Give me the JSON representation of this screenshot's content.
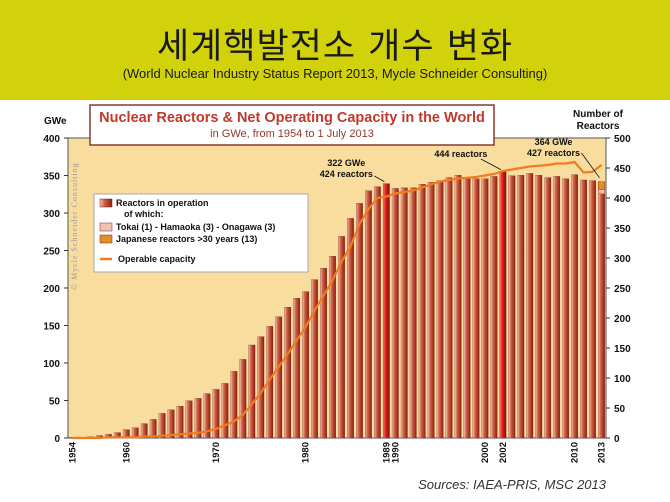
{
  "header": {
    "title": "세계핵발전소 개수 변화",
    "subtitle": "(World Nuclear Industry Status Report 2013, Mycle Schneider Consulting)"
  },
  "watermark": "© Mycle Schneider Consulting",
  "sources": "Sources: IAEA-PRIS, MSC 2013",
  "colors": {
    "header_bg": "#d2d20b",
    "plot_bg": "#f9dd9f",
    "bar_main": "#bf3a22",
    "bar_highlight": "#d8221f",
    "bar_pink": "#f2c3b2",
    "bar_orange": "#e88a2e",
    "line": "#f27a1f",
    "title_color": "#c0392b"
  },
  "chart_data": {
    "type": "bar",
    "title": "Nuclear Reactors & Net Operating Capacity in the World",
    "subtitle": "in GWe, from 1954 to 1 July 2013",
    "ylabel_left": "GWe",
    "ylabel_right": "Number of Reactors",
    "ylim_left": [
      0,
      400
    ],
    "ylim_right": [
      0,
      500
    ],
    "yticks_left": [
      0,
      50,
      100,
      150,
      200,
      250,
      300,
      350,
      400
    ],
    "yticks_right": [
      0,
      50,
      100,
      150,
      200,
      250,
      300,
      350,
      400,
      450,
      500
    ],
    "x_tick_labels": [
      "1954",
      "1960",
      "1970",
      "1980",
      "1989",
      "1990",
      "2000",
      "2002",
      "2010",
      "2013"
    ],
    "highlight_years": [
      1989,
      2002
    ],
    "years": [
      1954,
      1955,
      1956,
      1957,
      1958,
      1959,
      1960,
      1961,
      1962,
      1963,
      1964,
      1965,
      1966,
      1967,
      1968,
      1969,
      1970,
      1971,
      1972,
      1973,
      1974,
      1975,
      1976,
      1977,
      1978,
      1979,
      1980,
      1981,
      1982,
      1983,
      1984,
      1985,
      1986,
      1987,
      1988,
      1989,
      1990,
      1991,
      1992,
      1993,
      1994,
      1995,
      1996,
      1997,
      1998,
      1999,
      2000,
      2001,
      2002,
      2003,
      2004,
      2005,
      2006,
      2007,
      2008,
      2009,
      2010,
      2011,
      2012,
      2013
    ],
    "series": [
      {
        "name": "Reactors in operation",
        "axis": "right",
        "values": [
          1,
          1,
          2,
          4,
          6,
          9,
          14,
          17,
          24,
          31,
          41,
          47,
          53,
          62,
          66,
          74,
          81,
          91,
          111,
          131,
          155,
          169,
          186,
          202,
          218,
          233,
          244,
          264,
          283,
          303,
          336,
          366,
          391,
          412,
          419,
          424,
          416,
          417,
          417,
          423,
          426,
          429,
          434,
          438,
          434,
          432,
          432,
          436,
          444,
          437,
          438,
          441,
          438,
          434,
          436,
          432,
          439,
          430,
          429,
          427
        ]
      },
      {
        "name": "Tokai (1) - Hamaoka (3) - Onagawa (3)",
        "axis": "right",
        "values_2013": 7
      },
      {
        "name": "Japanese reactors >30 years (13)",
        "axis": "right",
        "values_2013": 13
      },
      {
        "name": "Operable capacity",
        "axis": "left",
        "type": "line",
        "values": [
          0,
          0,
          0,
          0,
          1,
          1,
          1,
          1,
          2,
          2,
          3,
          4,
          5,
          6,
          7,
          9,
          12,
          17,
          22,
          31,
          45,
          60,
          78,
          95,
          112,
          130,
          148,
          170,
          190,
          210,
          235,
          255,
          285,
          305,
          320,
          322,
          326,
          328,
          330,
          334,
          338,
          342,
          344,
          346,
          347,
          348,
          350,
          352,
          356,
          358,
          360,
          362,
          363,
          364,
          366,
          366,
          368,
          354,
          355,
          364
        ]
      }
    ],
    "legend": {
      "placement": "left-middle",
      "entries": [
        "Reactors in operation",
        "of which:",
        "Tokai (1) - Hamaoka (3) - Onagawa (3)",
        "Japanese reactors >30 years (13)",
        "Operable capacity"
      ]
    },
    "annotations": [
      {
        "text_line1": "322 GWe",
        "text_line2": "424 reactors",
        "year": 1989
      },
      {
        "text_line1": "444 reactors",
        "year": 2002
      },
      {
        "text_line1": "364 GWe",
        "text_line2": "427 reactors",
        "year": 2013
      }
    ],
    "grid": false
  }
}
